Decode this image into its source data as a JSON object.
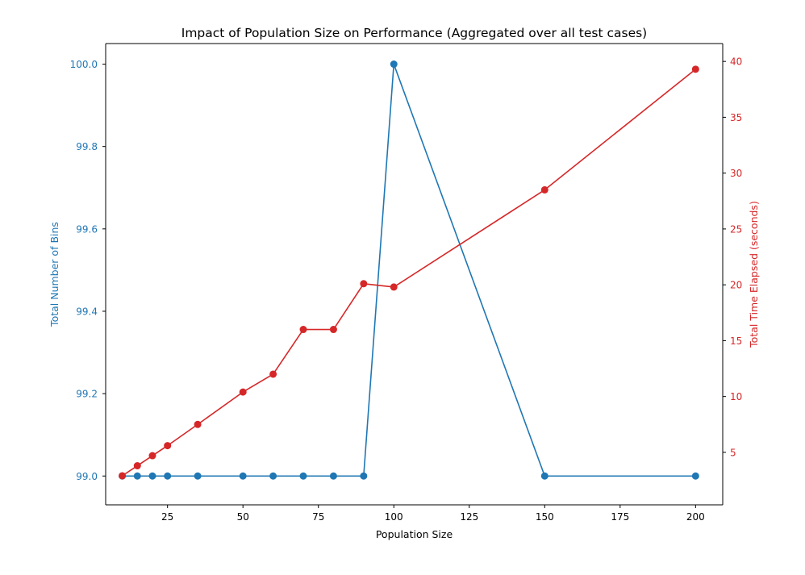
{
  "chart_data": {
    "type": "line",
    "title": "Impact of Population Size on Performance (Aggregated over all test cases)",
    "xlabel": "Population Size",
    "ylabel_left": "Total Number of Bins",
    "ylabel_right": "Total Time Elapsed (seconds)",
    "x": [
      10,
      15,
      20,
      25,
      35,
      50,
      60,
      70,
      80,
      90,
      100,
      150,
      200
    ],
    "xlim": [
      4.5,
      209
    ],
    "xticks": [
      25,
      50,
      75,
      100,
      125,
      150,
      175,
      200
    ],
    "ylim_left": [
      98.93,
      100.05
    ],
    "yticks_left": [
      99.0,
      99.2,
      99.4,
      99.6,
      99.8,
      100.0
    ],
    "ylim_right": [
      0.3,
      41.6
    ],
    "yticks_right": [
      5,
      10,
      15,
      20,
      25,
      30,
      35,
      40
    ],
    "grid": false,
    "series": [
      {
        "axis": "left",
        "color": "#1f77b4",
        "values": [
          99,
          99,
          99,
          99,
          99,
          99,
          99,
          99,
          99,
          99,
          100,
          99,
          99
        ]
      },
      {
        "axis": "right",
        "color": "#d62728",
        "values": [
          2.9,
          3.8,
          4.7,
          5.6,
          7.5,
          10.4,
          12.0,
          16.0,
          16.0,
          20.1,
          19.8,
          28.5,
          39.3
        ]
      }
    ]
  }
}
